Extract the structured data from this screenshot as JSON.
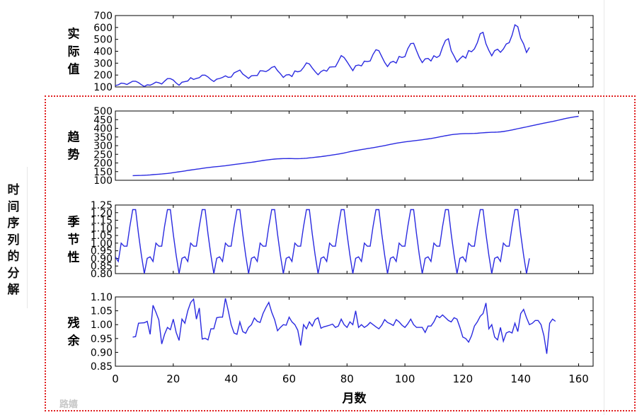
{
  "side_label": "时间序列的分解",
  "watermark": "路嬉",
  "chart_data": [
    {
      "type": "line",
      "ylabel": "实际值",
      "ylim": [
        100,
        700
      ],
      "yticks": [
        100,
        200,
        300,
        400,
        500,
        600,
        700
      ],
      "x_start": 0,
      "values": [
        112,
        118,
        132,
        129,
        121,
        135,
        148,
        148,
        136,
        119,
        104,
        118,
        115,
        126,
        141,
        135,
        125,
        149,
        170,
        170,
        158,
        133,
        114,
        140,
        145,
        150,
        178,
        163,
        172,
        178,
        199,
        199,
        184,
        162,
        146,
        166,
        171,
        180,
        193,
        181,
        183,
        218,
        230,
        242,
        209,
        191,
        172,
        194,
        196,
        196,
        236,
        235,
        229,
        243,
        264,
        272,
        237,
        211,
        180,
        201,
        204,
        188,
        235,
        227,
        234,
        264,
        302,
        293,
        259,
        229,
        203,
        229,
        242,
        233,
        267,
        269,
        270,
        315,
        364,
        347,
        312,
        274,
        237,
        278,
        284,
        277,
        317,
        313,
        318,
        374,
        413,
        405,
        355,
        306,
        271,
        306,
        315,
        301,
        356,
        348,
        355,
        422,
        465,
        467,
        404,
        347,
        305,
        336,
        340,
        318,
        362,
        348,
        363,
        435,
        491,
        505,
        404,
        359,
        310,
        337,
        360,
        342,
        406,
        396,
        420,
        472,
        548,
        559,
        463,
        407,
        362,
        405,
        417,
        391,
        419,
        461,
        472,
        535,
        622,
        606,
        508,
        461,
        390,
        432
      ]
    },
    {
      "type": "line",
      "ylabel": "趋势",
      "ylim": [
        100,
        500
      ],
      "yticks": [
        100,
        150,
        200,
        250,
        300,
        350,
        400,
        450,
        500
      ],
      "x_start": 6,
      "values": [
        127,
        127.2,
        127.8,
        128.3,
        128.8,
        129.7,
        131,
        132.5,
        134,
        135,
        136.3,
        137.8,
        139.6,
        141.8,
        144,
        146.4,
        148.8,
        151.4,
        154,
        156.6,
        159.2,
        161.7,
        164,
        166.3,
        168.6,
        170.9,
        173.2,
        175.2,
        177.1,
        178.9,
        180.6,
        182.3,
        184.2,
        186.4,
        188.7,
        191,
        193.2,
        195.3,
        197.3,
        199.4,
        201.5,
        203.6,
        206,
        208.8,
        211.6,
        214.3,
        216.7,
        218.8,
        220.7,
        222.3,
        223.6,
        224.5,
        225.2,
        225.5,
        225.6,
        225.4,
        225.1,
        224.9,
        225.2,
        226.1,
        227.5,
        229.2,
        231.1,
        232.9,
        234.6,
        236.5,
        238.7,
        241.1,
        243.6,
        246.1,
        248.7,
        251.3,
        254.3,
        257.6,
        261.2,
        264.9,
        268.4,
        271.5,
        274.4,
        277.2,
        280,
        282.8,
        285.5,
        288.3,
        291.2,
        294.2,
        297.3,
        300.5,
        303.8,
        307.2,
        310.6,
        313.8,
        316.7,
        319.2,
        321.5,
        323.6,
        325.6,
        327.6,
        329.6,
        331.7,
        333.9,
        336.2,
        338.6,
        341.2,
        344.1,
        347.3,
        350.7,
        354,
        357.2,
        360.1,
        362.7,
        364.9,
        366.7,
        368.1,
        369,
        369.6,
        369.9,
        370.2,
        370.7,
        371.6,
        372.9,
        374.3,
        375.6,
        376.5,
        377.1,
        377.6,
        378.4,
        379.7,
        381.7,
        384.3,
        387.4,
        390.8,
        394.3,
        397.8,
        401.3,
        404.8,
        408.3,
        411.8,
        415.4,
        419,
        422.7,
        426.3,
        429.8,
        433.1,
        436.3,
        439.6,
        443.1,
        446.9,
        450.8,
        454.6,
        458.2,
        461.5,
        464.4,
        467,
        469.2
      ]
    },
    {
      "type": "line",
      "ylabel": "季节性",
      "ylim": [
        0.8,
        1.25
      ],
      "yticks": [
        0.8,
        0.85,
        0.9,
        0.95,
        1.0,
        1.05,
        1.1,
        1.15,
        1.2,
        1.25
      ],
      "ytick_labels": [
        "0.80",
        "0.85",
        "0.90",
        "0.95",
        "1.00",
        "1.05",
        "1.10",
        "1.15",
        "1.20",
        "1.25"
      ],
      "x_start": 0,
      "pattern": [
        0.91,
        0.88,
        1.0,
        0.98,
        0.98,
        1.11,
        1.22,
        1.22,
        1.06,
        0.92,
        0.8,
        0.9
      ],
      "periods": 12
    },
    {
      "type": "line",
      "ylabel": "残余",
      "ylim": [
        0.85,
        1.1
      ],
      "yticks": [
        0.85,
        0.9,
        0.95,
        1.0,
        1.05,
        1.1
      ],
      "ytick_labels": [
        "0.85",
        "0.90",
        "0.95",
        "1.00",
        "1.05",
        "1.10"
      ],
      "x_start": 6,
      "values": [
        0.955,
        0.957,
        1.005,
        1.006,
        1.007,
        1.012,
        0.965,
        1.07,
        1.045,
        1.017,
        0.93,
        0.965,
        0.99,
        0.982,
        1.02,
        0.972,
        0.943,
        1.02,
        1.005,
        1.05,
        1.08,
        1.092,
        1.02,
        1.06,
        0.948,
        0.951,
        0.945,
        0.985,
        0.985,
        1.025,
        1.027,
        1.027,
        1.095,
        1.05,
        1.0,
        0.97,
        0.965,
        1.01,
        0.975,
        0.969,
        0.99,
        1.0,
        1.024,
        1.012,
        1.008,
        1.04,
        1.062,
        1.08,
        1.045,
        1.018,
        0.978,
        0.99,
        1.0,
        0.998,
        1.027,
        1.01,
        1.0,
        0.98,
        0.925,
        1.0,
        0.985,
        1.01,
        0.995,
        1.018,
        1.025,
        0.987,
        0.992,
        0.995,
        0.998,
        1.002,
        0.99,
        0.995,
        1.02,
        1.0,
        0.99,
        1.01,
        1.0,
        1.05,
        0.99,
        1.0,
        0.99,
        0.997,
        1.008,
        1.0,
        0.992,
        0.985,
        0.998,
        1.018,
        1.008,
        1.003,
        0.997,
        1.018,
        1.01,
        0.998,
        0.99,
        1.003,
        1.02,
        1.0,
        0.99,
        0.99,
        0.99,
        0.972,
        0.995,
        0.995,
        1.01,
        1.032,
        1.025,
        1.035,
        1.025,
        1.015,
        1.01,
        1.025,
        1.02,
        0.99,
        0.955,
        0.95,
        0.937,
        0.96,
        0.995,
        1.01,
        1.03,
        1.04,
        1.078,
        0.985,
        1.0,
        0.955,
        0.945,
        0.99,
        0.94,
        0.97,
        0.975,
        0.97,
        1.005,
        0.975,
        1.04,
        1.055,
        1.025,
        1.0,
        1.005,
        1.015,
        1.015,
        1.0,
        0.96,
        0.895,
        1.005,
        1.02,
        1.012
      ]
    }
  ],
  "xaxis": {
    "label": "月数",
    "xlim": [
      0,
      165
    ],
    "ticks": [
      0,
      20,
      40,
      60,
      80,
      100,
      120,
      140,
      160
    ]
  }
}
